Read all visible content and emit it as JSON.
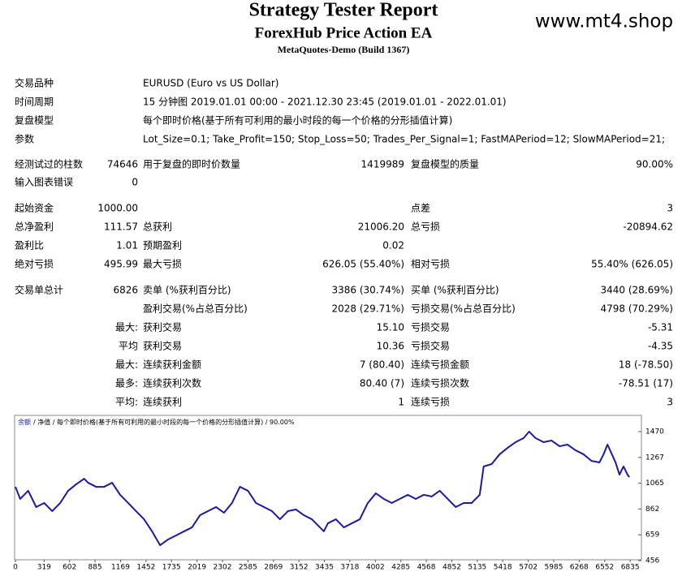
{
  "header": {
    "title": "Strategy Tester Report",
    "subtitle": "ForexHub Price Action EA",
    "build": "MetaQuotes-Demo (Build 1367)",
    "watermark": "www.mt4.shop"
  },
  "info": [
    [
      "交易品种",
      "EURUSD (Euro vs US Dollar)"
    ],
    [
      "时间周期",
      "15 分钟图 2019.01.01 00:00 - 2021.12.30 23:45 (2019.01.01 - 2022.01.01)"
    ],
    [
      "复盘模型",
      "每个即时价格(基于所有可利用的最小时段的每一个价格的分形插值计算)"
    ],
    [
      "参数",
      "Lot_Size=0.1; Take_Profit=150; Stop_Loss=50; Trades_Per_Signal=1; FastMAPeriod=12; SlowMAPeriod=21;"
    ]
  ],
  "stats": [
    [
      "经测试过的柱数",
      "74646",
      "用于复盘的即时价数量",
      "1419989",
      "复盘模型的质量",
      "90.00%"
    ],
    [
      "输入图表错误",
      "0",
      null,
      null,
      null,
      null
    ],
    [
      "起始资金",
      "1000.00",
      null,
      null,
      "点差",
      "3"
    ],
    [
      "总净盈利",
      "111.57",
      "总获利",
      "21006.20",
      "总亏损",
      "-20894.62"
    ],
    [
      "盈利比",
      "1.01",
      "预期盈利",
      "0.02",
      null,
      null
    ],
    [
      "绝对亏损",
      "495.99",
      "最大亏损",
      "626.05 (55.40%)",
      "相对亏损",
      "55.40% (626.05)"
    ],
    [
      "交易单总计",
      "6826",
      "卖单 (%获利百分比)",
      "3386 (30.74%)",
      "买单 (%获利百分比)",
      "3440 (28.69%)"
    ],
    [
      null,
      null,
      "盈利交易(%占总百分比)",
      "2028 (29.71%)",
      "亏损交易(%占总百分比)",
      "4798 (70.29%)"
    ],
    [
      null,
      "最大:",
      "获利交易",
      "15.10",
      "亏损交易",
      "-5.31"
    ],
    [
      null,
      "平均",
      "获利交易",
      "10.36",
      "亏损交易",
      "-4.35"
    ],
    [
      null,
      "最大:",
      "连续获利金额",
      "7 (80.40)",
      "连续亏损金额",
      "18 (-78.50)"
    ],
    [
      null,
      "最多:",
      "连续获利次数",
      "80.40 (7)",
      "连续亏损次数",
      "-78.51 (17)"
    ],
    [
      null,
      "平均:",
      "连续获利",
      "1",
      "连续亏损",
      "3"
    ]
  ],
  "chart_data": {
    "type": "line",
    "legend_text": "/ 净值 / 每个即时价格(基于所有可利用的最小时段的每一个价格的分形插值计算) / 90.00%",
    "x": [
      0,
      53,
      142,
      231,
      320,
      409,
      498,
      586,
      675,
      764,
      808,
      897,
      986,
      1075,
      1164,
      1253,
      1341,
      1430,
      1519,
      1608,
      1697,
      1786,
      1875,
      1963,
      2052,
      2141,
      2230,
      2319,
      2408,
      2496,
      2585,
      2674,
      2763,
      2852,
      2941,
      3030,
      3118,
      3207,
      3296,
      3385,
      3429,
      3474,
      3563,
      3651,
      3740,
      3829,
      3918,
      4007,
      4096,
      4184,
      4273,
      4362,
      4451,
      4540,
      4629,
      4717,
      4806,
      4895,
      4984,
      5073,
      5162,
      5206,
      5295,
      5384,
      5473,
      5561,
      5650,
      5712,
      5783,
      5872,
      5961,
      6050,
      6139,
      6228,
      6316,
      6405,
      6494,
      6539,
      6583,
      6672,
      6716,
      6761,
      6805,
      6826
    ],
    "series": [
      {
        "name": "余额",
        "color": "#1a1aa6",
        "values": [
          1036,
          941,
          1005,
          877,
          909,
          845,
          909,
          1005,
          1056,
          1100,
          1068,
          1036,
          1036,
          1068,
          973,
          909,
          845,
          781,
          686,
          577,
          622,
          654,
          686,
          717,
          813,
          845,
          877,
          832,
          909,
          1036,
          1005,
          909,
          877,
          845,
          781,
          845,
          858,
          813,
          781,
          717,
          686,
          749,
          781,
          717,
          749,
          781,
          909,
          985,
          941,
          909,
          941,
          973,
          941,
          973,
          960,
          1005,
          941,
          877,
          909,
          909,
          973,
          1196,
          1215,
          1292,
          1343,
          1387,
          1419,
          1470,
          1419,
          1387,
          1400,
          1355,
          1368,
          1323,
          1292,
          1240,
          1228,
          1292,
          1368,
          1228,
          1132,
          1196,
          1132,
          1112
        ]
      }
    ],
    "xlim": [
      0,
      6960
    ],
    "ylim": [
      456,
      1585
    ],
    "xticks": [
      0,
      319,
      602,
      885,
      1169,
      1452,
      1735,
      2019,
      2302,
      2585,
      2869,
      3152,
      3435,
      3718,
      4002,
      4285,
      4568,
      4852,
      5135,
      5418,
      5702,
      5985,
      6268,
      6552,
      6835
    ],
    "yticks": [
      456,
      659,
      862,
      1065,
      1267,
      1470
    ]
  }
}
